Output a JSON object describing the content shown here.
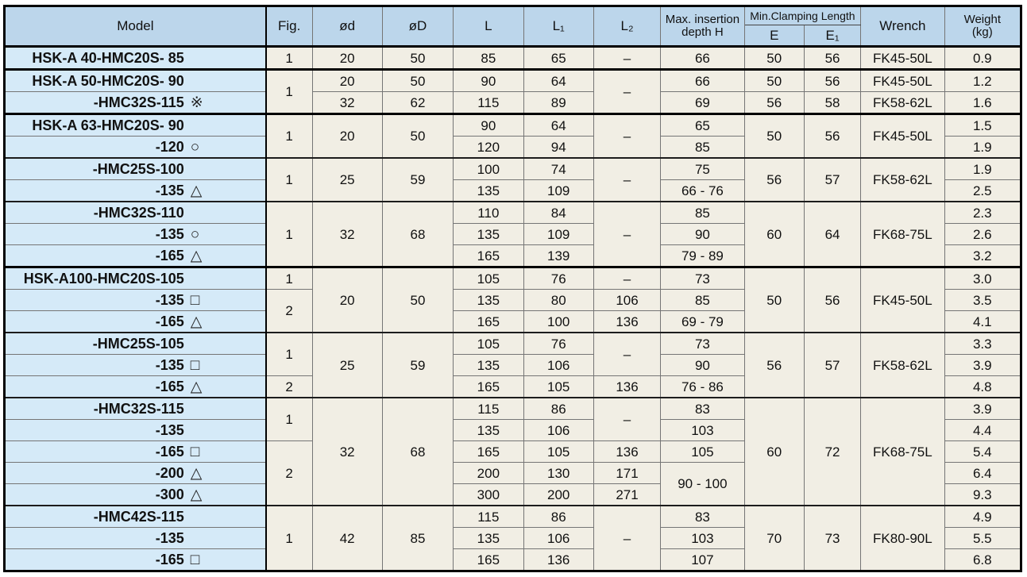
{
  "table": {
    "headers": {
      "model": "Model",
      "fig": "Fig.",
      "od": "ød",
      "oD": "øD",
      "l": "L",
      "l1": "L₁",
      "l2": "L₂",
      "max_insertion_line1": "Max. insertion",
      "max_insertion_line2": "depth H",
      "min_clamping": "Min.Clamping Length",
      "e": "E",
      "e1": "E₁",
      "wrench": "Wrench",
      "weight_line1": "Weight",
      "weight_line2": "(kg)"
    },
    "rows": [
      {
        "model": "HSK-A 40-HMC20S- 85",
        "symbol": "",
        "cls": "",
        "cells": [
          {
            "c": "fig",
            "v": "1"
          },
          {
            "c": "od",
            "v": "20"
          },
          {
            "c": "oD",
            "v": "50"
          },
          {
            "c": "l",
            "v": "85"
          },
          {
            "c": "l1",
            "v": "65"
          },
          {
            "c": "l2",
            "v": "–"
          },
          {
            "c": "h",
            "v": "66"
          },
          {
            "c": "e",
            "v": "50"
          },
          {
            "c": "e1",
            "v": "56"
          },
          {
            "c": "wrench",
            "v": "FK45-50L"
          },
          {
            "c": "wt",
            "v": "0.9"
          }
        ]
      },
      {
        "model": "HSK-A 50-HMC20S- 90",
        "symbol": "",
        "cls": "major",
        "cells": [
          {
            "c": "fig",
            "v": "1",
            "rs": 2
          },
          {
            "c": "od",
            "v": "20"
          },
          {
            "c": "oD",
            "v": "50"
          },
          {
            "c": "l",
            "v": "90"
          },
          {
            "c": "l1",
            "v": "64"
          },
          {
            "c": "l2",
            "v": "–",
            "rs": 2
          },
          {
            "c": "h",
            "v": "66"
          },
          {
            "c": "e",
            "v": "50"
          },
          {
            "c": "e1",
            "v": "56"
          },
          {
            "c": "wrench",
            "v": "FK45-50L"
          },
          {
            "c": "wt",
            "v": "1.2"
          }
        ]
      },
      {
        "model": "-HMC32S-115",
        "symbol": "※",
        "cls": "",
        "cells": [
          {
            "c": "od",
            "v": "32"
          },
          {
            "c": "oD",
            "v": "62"
          },
          {
            "c": "l",
            "v": "115"
          },
          {
            "c": "l1",
            "v": "89"
          },
          {
            "c": "h",
            "v": "69"
          },
          {
            "c": "e",
            "v": "56"
          },
          {
            "c": "e1",
            "v": "58"
          },
          {
            "c": "wrench",
            "v": "FK58-62L"
          },
          {
            "c": "wt",
            "v": "1.6"
          }
        ]
      },
      {
        "model": "HSK-A 63-HMC20S- 90",
        "symbol": "",
        "cls": "major",
        "cells": [
          {
            "c": "fig",
            "v": "1",
            "rs": 2
          },
          {
            "c": "od",
            "v": "20",
            "rs": 2
          },
          {
            "c": "oD",
            "v": "50",
            "rs": 2
          },
          {
            "c": "l",
            "v": "90"
          },
          {
            "c": "l1",
            "v": "64"
          },
          {
            "c": "l2",
            "v": "–",
            "rs": 2
          },
          {
            "c": "h",
            "v": "65"
          },
          {
            "c": "e",
            "v": "50",
            "rs": 2
          },
          {
            "c": "e1",
            "v": "56",
            "rs": 2
          },
          {
            "c": "wrench",
            "v": "FK45-50L",
            "rs": 2
          },
          {
            "c": "wt",
            "v": "1.5"
          }
        ]
      },
      {
        "model": "-120",
        "symbol": "○",
        "cls": "",
        "cells": [
          {
            "c": "l",
            "v": "120"
          },
          {
            "c": "l1",
            "v": "94"
          },
          {
            "c": "h",
            "v": "85"
          },
          {
            "c": "wt",
            "v": "1.9"
          }
        ]
      },
      {
        "model": "-HMC25S-100",
        "symbol": "",
        "cls": "group",
        "cells": [
          {
            "c": "fig",
            "v": "1",
            "rs": 2
          },
          {
            "c": "od",
            "v": "25",
            "rs": 2
          },
          {
            "c": "oD",
            "v": "59",
            "rs": 2
          },
          {
            "c": "l",
            "v": "100"
          },
          {
            "c": "l1",
            "v": "74"
          },
          {
            "c": "l2",
            "v": "–",
            "rs": 2
          },
          {
            "c": "h",
            "v": "75"
          },
          {
            "c": "e",
            "v": "56",
            "rs": 2
          },
          {
            "c": "e1",
            "v": "57",
            "rs": 2
          },
          {
            "c": "wrench",
            "v": "FK58-62L",
            "rs": 2
          },
          {
            "c": "wt",
            "v": "1.9"
          }
        ]
      },
      {
        "model": "-135",
        "symbol": "△",
        "cls": "",
        "cells": [
          {
            "c": "l",
            "v": "135"
          },
          {
            "c": "l1",
            "v": "109"
          },
          {
            "c": "h",
            "v": "66 - 76"
          },
          {
            "c": "wt",
            "v": "2.5"
          }
        ]
      },
      {
        "model": "-HMC32S-110",
        "symbol": "",
        "cls": "group",
        "cells": [
          {
            "c": "fig",
            "v": "1",
            "rs": 3
          },
          {
            "c": "od",
            "v": "32",
            "rs": 3
          },
          {
            "c": "oD",
            "v": "68",
            "rs": 3
          },
          {
            "c": "l",
            "v": "110"
          },
          {
            "c": "l1",
            "v": "84"
          },
          {
            "c": "l2",
            "v": "–",
            "rs": 3
          },
          {
            "c": "h",
            "v": "85"
          },
          {
            "c": "e",
            "v": "60",
            "rs": 3
          },
          {
            "c": "e1",
            "v": "64",
            "rs": 3
          },
          {
            "c": "wrench",
            "v": "FK68-75L",
            "rs": 3
          },
          {
            "c": "wt",
            "v": "2.3"
          }
        ]
      },
      {
        "model": "-135",
        "symbol": "○",
        "cls": "",
        "cells": [
          {
            "c": "l",
            "v": "135"
          },
          {
            "c": "l1",
            "v": "109"
          },
          {
            "c": "h",
            "v": "90"
          },
          {
            "c": "wt",
            "v": "2.6"
          }
        ]
      },
      {
        "model": "-165",
        "symbol": "△",
        "cls": "",
        "cells": [
          {
            "c": "l",
            "v": "165"
          },
          {
            "c": "l1",
            "v": "139"
          },
          {
            "c": "h",
            "v": "79 - 89"
          },
          {
            "c": "wt",
            "v": "3.2"
          }
        ]
      },
      {
        "model": "HSK-A100-HMC20S-105",
        "symbol": "",
        "cls": "major",
        "cells": [
          {
            "c": "fig",
            "v": "1"
          },
          {
            "c": "od",
            "v": "20",
            "rs": 3
          },
          {
            "c": "oD",
            "v": "50",
            "rs": 3
          },
          {
            "c": "l",
            "v": "105"
          },
          {
            "c": "l1",
            "v": "76"
          },
          {
            "c": "l2",
            "v": "–"
          },
          {
            "c": "h",
            "v": "73"
          },
          {
            "c": "e",
            "v": "50",
            "rs": 3
          },
          {
            "c": "e1",
            "v": "56",
            "rs": 3
          },
          {
            "c": "wrench",
            "v": "FK45-50L",
            "rs": 3
          },
          {
            "c": "wt",
            "v": "3.0"
          }
        ]
      },
      {
        "model": "-135",
        "symbol": "□",
        "cls": "",
        "cells": [
          {
            "c": "fig",
            "v": "2",
            "rs": 2
          },
          {
            "c": "l",
            "v": "135"
          },
          {
            "c": "l1",
            "v": "80"
          },
          {
            "c": "l2",
            "v": "106"
          },
          {
            "c": "h",
            "v": "85"
          },
          {
            "c": "wt",
            "v": "3.5"
          }
        ]
      },
      {
        "model": "-165",
        "symbol": "△",
        "cls": "",
        "cells": [
          {
            "c": "l",
            "v": "165"
          },
          {
            "c": "l1",
            "v": "100"
          },
          {
            "c": "l2",
            "v": "136"
          },
          {
            "c": "h",
            "v": "69 - 79"
          },
          {
            "c": "wt",
            "v": "4.1"
          }
        ]
      },
      {
        "model": "-HMC25S-105",
        "symbol": "",
        "cls": "group",
        "cells": [
          {
            "c": "fig",
            "v": "1",
            "rs": 2
          },
          {
            "c": "od",
            "v": "25",
            "rs": 3
          },
          {
            "c": "oD",
            "v": "59",
            "rs": 3
          },
          {
            "c": "l",
            "v": "105"
          },
          {
            "c": "l1",
            "v": "76"
          },
          {
            "c": "l2",
            "v": "–",
            "rs": 2
          },
          {
            "c": "h",
            "v": "73"
          },
          {
            "c": "e",
            "v": "56",
            "rs": 3
          },
          {
            "c": "e1",
            "v": "57",
            "rs": 3
          },
          {
            "c": "wrench",
            "v": "FK58-62L",
            "rs": 3
          },
          {
            "c": "wt",
            "v": "3.3"
          }
        ]
      },
      {
        "model": "-135",
        "symbol": "□",
        "cls": "",
        "cells": [
          {
            "c": "l",
            "v": "135"
          },
          {
            "c": "l1",
            "v": "106"
          },
          {
            "c": "h",
            "v": "90"
          },
          {
            "c": "wt",
            "v": "3.9"
          }
        ]
      },
      {
        "model": "-165",
        "symbol": "△",
        "cls": "",
        "cells": [
          {
            "c": "fig",
            "v": "2"
          },
          {
            "c": "l",
            "v": "165"
          },
          {
            "c": "l1",
            "v": "105"
          },
          {
            "c": "l2",
            "v": "136"
          },
          {
            "c": "h",
            "v": "76 - 86"
          },
          {
            "c": "wt",
            "v": "4.8"
          }
        ]
      },
      {
        "model": "-HMC32S-115",
        "symbol": "",
        "cls": "group",
        "cells": [
          {
            "c": "fig",
            "v": "1",
            "rs": 2
          },
          {
            "c": "od",
            "v": "32",
            "rs": 5
          },
          {
            "c": "oD",
            "v": "68",
            "rs": 5
          },
          {
            "c": "l",
            "v": "115"
          },
          {
            "c": "l1",
            "v": "86"
          },
          {
            "c": "l2",
            "v": "–",
            "rs": 2
          },
          {
            "c": "h",
            "v": "83"
          },
          {
            "c": "e",
            "v": "60",
            "rs": 5
          },
          {
            "c": "e1",
            "v": "72",
            "rs": 5
          },
          {
            "c": "wrench",
            "v": "FK68-75L",
            "rs": 5
          },
          {
            "c": "wt",
            "v": "3.9"
          }
        ]
      },
      {
        "model": "-135",
        "symbol": "",
        "cls": "",
        "cells": [
          {
            "c": "l",
            "v": "135"
          },
          {
            "c": "l1",
            "v": "106"
          },
          {
            "c": "h",
            "v": "103"
          },
          {
            "c": "wt",
            "v": "4.4"
          }
        ]
      },
      {
        "model": "-165",
        "symbol": "□",
        "cls": "",
        "cells": [
          {
            "c": "fig",
            "v": "2",
            "rs": 3
          },
          {
            "c": "l",
            "v": "165"
          },
          {
            "c": "l1",
            "v": "105"
          },
          {
            "c": "l2",
            "v": "136"
          },
          {
            "c": "h",
            "v": "105"
          },
          {
            "c": "wt",
            "v": "5.4"
          }
        ]
      },
      {
        "model": "-200",
        "symbol": "△",
        "cls": "",
        "cells": [
          {
            "c": "l",
            "v": "200"
          },
          {
            "c": "l1",
            "v": "130"
          },
          {
            "c": "l2",
            "v": "171"
          },
          {
            "c": "h",
            "v": "90 - 100",
            "rs": 2
          },
          {
            "c": "wt",
            "v": "6.4"
          }
        ]
      },
      {
        "model": "-300",
        "symbol": "△",
        "cls": "",
        "cells": [
          {
            "c": "l",
            "v": "300"
          },
          {
            "c": "l1",
            "v": "200"
          },
          {
            "c": "l2",
            "v": "271"
          },
          {
            "c": "wt",
            "v": "9.3"
          }
        ]
      },
      {
        "model": "-HMC42S-115",
        "symbol": "",
        "cls": "group",
        "cells": [
          {
            "c": "fig",
            "v": "1",
            "rs": 3
          },
          {
            "c": "od",
            "v": "42",
            "rs": 3
          },
          {
            "c": "oD",
            "v": "85",
            "rs": 3
          },
          {
            "c": "l",
            "v": "115"
          },
          {
            "c": "l1",
            "v": "86"
          },
          {
            "c": "l2",
            "v": "–",
            "rs": 3
          },
          {
            "c": "h",
            "v": "83"
          },
          {
            "c": "e",
            "v": "70",
            "rs": 3
          },
          {
            "c": "e1",
            "v": "73",
            "rs": 3
          },
          {
            "c": "wrench",
            "v": "FK80-90L",
            "rs": 3
          },
          {
            "c": "wt",
            "v": "4.9"
          }
        ]
      },
      {
        "model": "-135",
        "symbol": "",
        "cls": "",
        "cells": [
          {
            "c": "l",
            "v": "135"
          },
          {
            "c": "l1",
            "v": "106"
          },
          {
            "c": "h",
            "v": "103"
          },
          {
            "c": "wt",
            "v": "5.5"
          }
        ]
      },
      {
        "model": "-165",
        "symbol": "□",
        "cls": "",
        "cells": [
          {
            "c": "l",
            "v": "165"
          },
          {
            "c": "l1",
            "v": "136"
          },
          {
            "c": "h",
            "v": "107"
          },
          {
            "c": "wt",
            "v": "6.8"
          }
        ]
      }
    ]
  },
  "colors": {
    "header_bg": "#bcd6eb",
    "model_bg": "#d5eaf8",
    "cell_bg": "#f1eee4",
    "thin_border": "#757575",
    "dark_border": "#000000"
  }
}
